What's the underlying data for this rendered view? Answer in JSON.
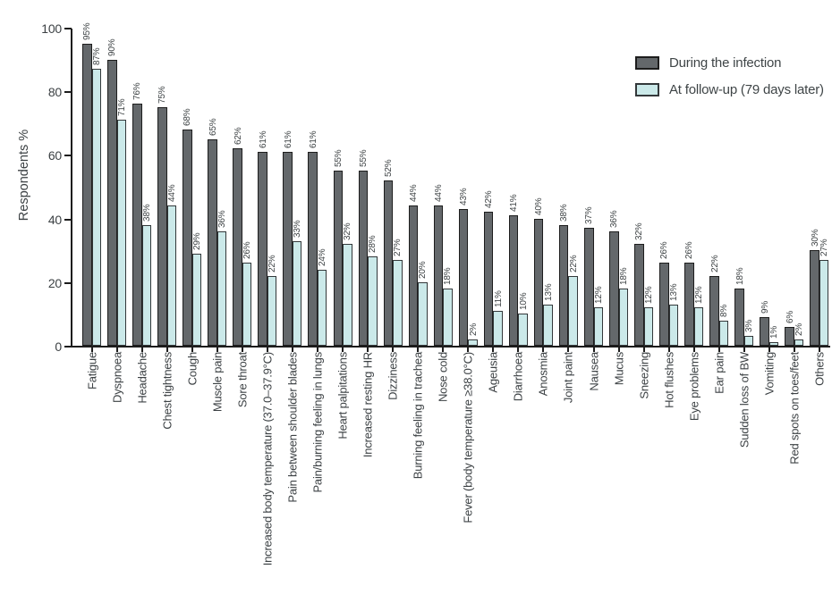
{
  "chart_data": {
    "type": "bar",
    "title": "",
    "ylabel": "Respondents %",
    "ylim": [
      0,
      100
    ],
    "yticks": [
      0,
      20,
      40,
      60,
      80,
      100
    ],
    "grid": false,
    "legend_position": "top-right",
    "value_label_suffix": "%",
    "categories": [
      "Fatigue",
      "Dyspnoea",
      "Headache",
      "Chest tightness",
      "Cough",
      "Muscle pain",
      "Sore throat",
      "Increased body temperature (37.0–37.9°C)",
      "Pain between shoulder blades",
      "Pain/burning feeling in lungs",
      "Heart palpitations",
      "Increased resting HR",
      "Dizziness",
      "Burning feeling in trachea",
      "Nose cold",
      "Fever (body temperature ≥38.0°C)",
      "Ageusia",
      "Diarrhoea",
      "Anosmia",
      "Joint paint",
      "Nausea",
      "Mucus",
      "Sneezing",
      "Hot flushes",
      "Eye problems",
      "Ear pain",
      "Sudden loss of BW",
      "Vomiting",
      "Red spots on toes/feet",
      "Others"
    ],
    "series": [
      {
        "name": "During the infection",
        "color": "#64686b",
        "values": [
          95,
          90,
          76,
          75,
          68,
          65,
          62,
          61,
          61,
          61,
          55,
          55,
          52,
          44,
          44,
          43,
          42,
          41,
          40,
          38,
          37,
          36,
          32,
          26,
          26,
          22,
          18,
          9,
          6,
          30
        ]
      },
      {
        "name": "At follow-up (79 days later)",
        "color": "#cbe9e9",
        "values": [
          87,
          71,
          38,
          44,
          29,
          36,
          26,
          22,
          33,
          24,
          32,
          28,
          27,
          20,
          18,
          2,
          11,
          10,
          13,
          22,
          12,
          18,
          12,
          13,
          12,
          8,
          3,
          1,
          2,
          27
        ]
      }
    ]
  },
  "colors": {
    "bar_during_fill": "#64686b",
    "bar_during_border": "#1d1d1d",
    "bar_followup_fill": "#cbe9e9",
    "bar_followup_border": "#33383a",
    "axis": "#1c1c1c",
    "text": "#3c4144"
  }
}
